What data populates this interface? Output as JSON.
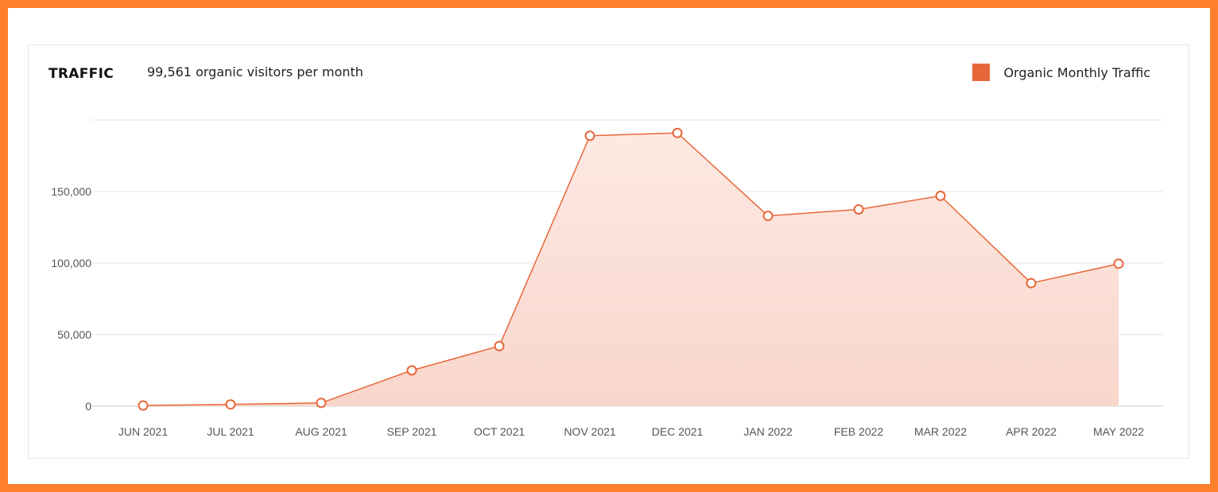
{
  "header": {
    "title": "TRAFFIC",
    "subtitle": "99,561 organic visitors per month"
  },
  "legend": {
    "label": "Organic Monthly Traffic"
  },
  "colors": {
    "frame": "#fe7f2d",
    "line": "#e8673a",
    "swatch": "#e8673a",
    "fill_top": "#fde9e3",
    "fill_bottom": "#f9d6cb",
    "grid": "#e6e6e6"
  },
  "chart_data": {
    "type": "area",
    "title": "TRAFFIC",
    "subtitle": "99,561 organic visitors per month",
    "xlabel": "",
    "ylabel": "",
    "categories": [
      "JUN 2021",
      "JUL 2021",
      "AUG 2021",
      "SEP 2021",
      "OCT 2021",
      "NOV 2021",
      "DEC 2021",
      "JAN 2022",
      "FEB 2022",
      "MAR 2022",
      "APR 2022",
      "MAY 2022"
    ],
    "series": [
      {
        "name": "Organic Monthly Traffic",
        "values": [
          500,
          1200,
          2300,
          25000,
          42000,
          189000,
          191000,
          133000,
          137500,
          147000,
          86000,
          99561
        ]
      }
    ],
    "y_ticks": [
      0,
      50000,
      100000,
      150000
    ],
    "y_tick_labels": [
      "0",
      "50,000",
      "100,000",
      "150,000"
    ],
    "ylim": [
      0,
      200000
    ],
    "grid": true,
    "legend_position": "top-right"
  }
}
